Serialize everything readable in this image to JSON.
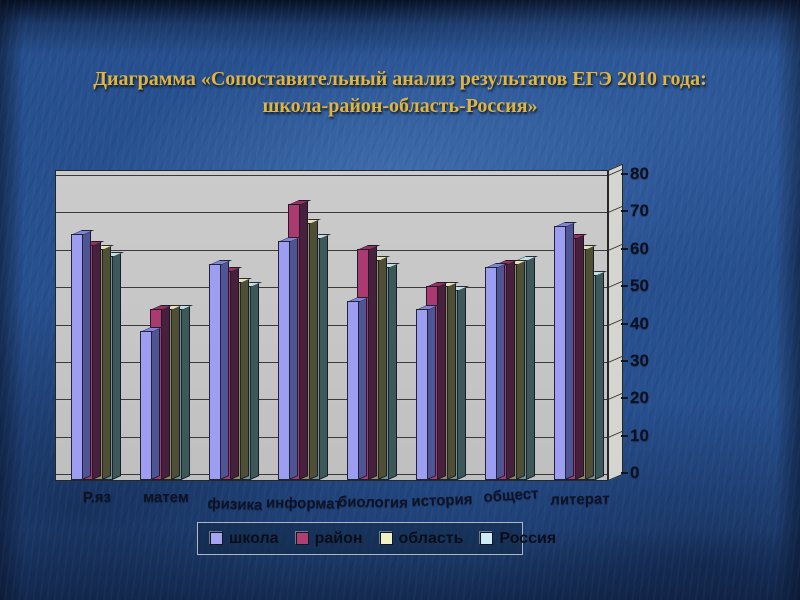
{
  "slide": {
    "title_line1": "Диаграмма «Сопоставительный анализ результатов ЕГЭ  2010 года:",
    "title_line2": "школа-район-область-Россия»",
    "title_color": "#e0b43e",
    "background_color": "#27508f"
  },
  "chart_data": {
    "type": "bar",
    "style": "3d-column",
    "title": "Сопоставительный анализ результатов ЕГЭ 2010 года: школа-район-область-Россия",
    "categories": [
      "Р.яз",
      "матем",
      "физика",
      "информат",
      "биология",
      "история",
      "общест",
      "литерат"
    ],
    "series": [
      {
        "name": "школа",
        "values": [
          64,
          38,
          56,
          62,
          46,
          44,
          55,
          66
        ],
        "color": "#9d9df2",
        "side_color": "#4f5494",
        "top_color": "#8184d6",
        "legend_color": "#a3a3ee"
      },
      {
        "name": "район",
        "values": [
          61,
          44,
          54,
          72,
          60,
          50,
          56,
          63
        ],
        "color": "#aa3a70",
        "side_color": "#46203c",
        "top_color": "#93325f",
        "legend_color": "#ad4070"
      },
      {
        "name": "область",
        "values": [
          60,
          44,
          51,
          67,
          57,
          50,
          56,
          60
        ],
        "color": "#8d8d62",
        "side_color": "#4f4f35",
        "top_color": "#e5e2b4",
        "legend_color": "#f2efc2"
      },
      {
        "name": "Россия",
        "values": [
          58,
          44,
          50,
          63,
          55,
          49,
          57,
          53
        ],
        "color": "#6e9595",
        "side_color": "#3c5858",
        "top_color": "#bfe0e4",
        "legend_color": "#cfeaf2"
      }
    ],
    "xlabel": "",
    "ylabel": "",
    "ylim": [
      0,
      80
    ],
    "ytick_step": 10,
    "yticks": [
      "0",
      "10",
      "20",
      "30",
      "40",
      "50",
      "60",
      "70",
      "80"
    ],
    "grid": true,
    "legend_position": "bottom",
    "plot_background": "#c7c7c7",
    "axis_label_color": "#0d1226"
  }
}
